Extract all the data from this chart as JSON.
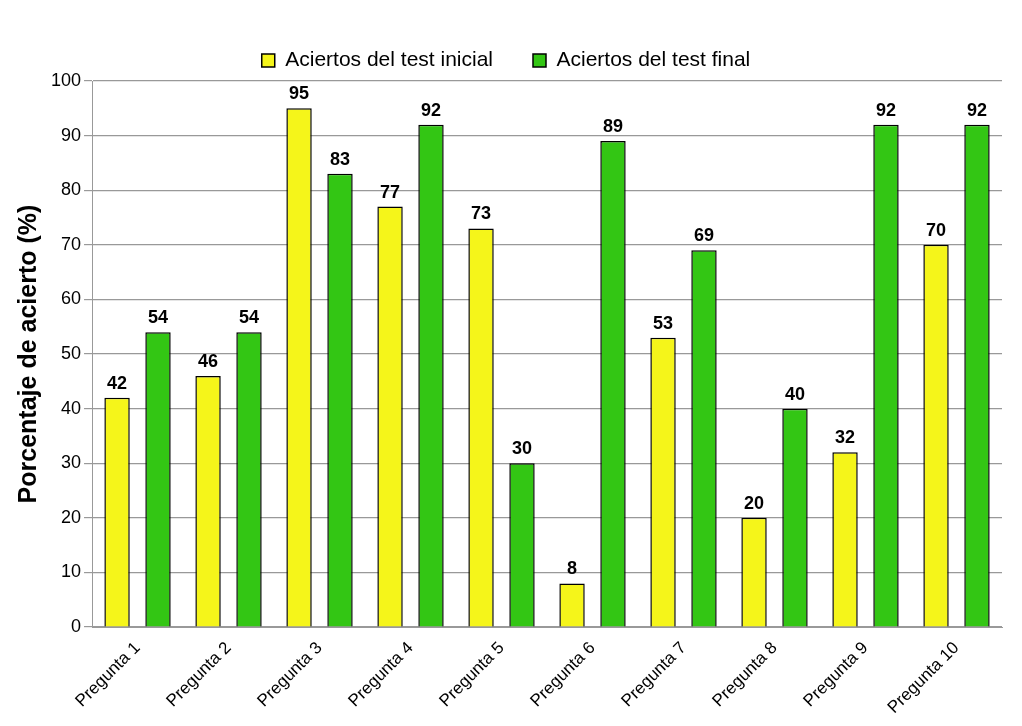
{
  "chart_data": {
    "type": "bar",
    "ylabel": "Porcentaje de acierto (%)",
    "categories": [
      "Pregunta 1",
      "Pregunta 2",
      "Pregunta 3",
      "Pregunta 4",
      "Pregunta 5",
      "Pregunta 6",
      "Pregunta 7",
      "Pregunta 8",
      "Pregunta 9",
      "Pregunta 10"
    ],
    "series": [
      {
        "name": "Aciertos del test inicial",
        "color": "#f5f51a",
        "values": [
          42,
          46,
          95,
          77,
          73,
          8,
          53,
          20,
          32,
          70
        ]
      },
      {
        "name": "Aciertos del test final",
        "color": "#33c614",
        "values": [
          54,
          54,
          83,
          92,
          30,
          89,
          69,
          40,
          92,
          92
        ]
      }
    ],
    "ylim": [
      0,
      100
    ],
    "yticks": [
      0,
      10,
      20,
      30,
      40,
      50,
      60,
      70,
      80,
      90,
      100
    ],
    "grid": "y",
    "legend": "top",
    "data_labels": true
  }
}
